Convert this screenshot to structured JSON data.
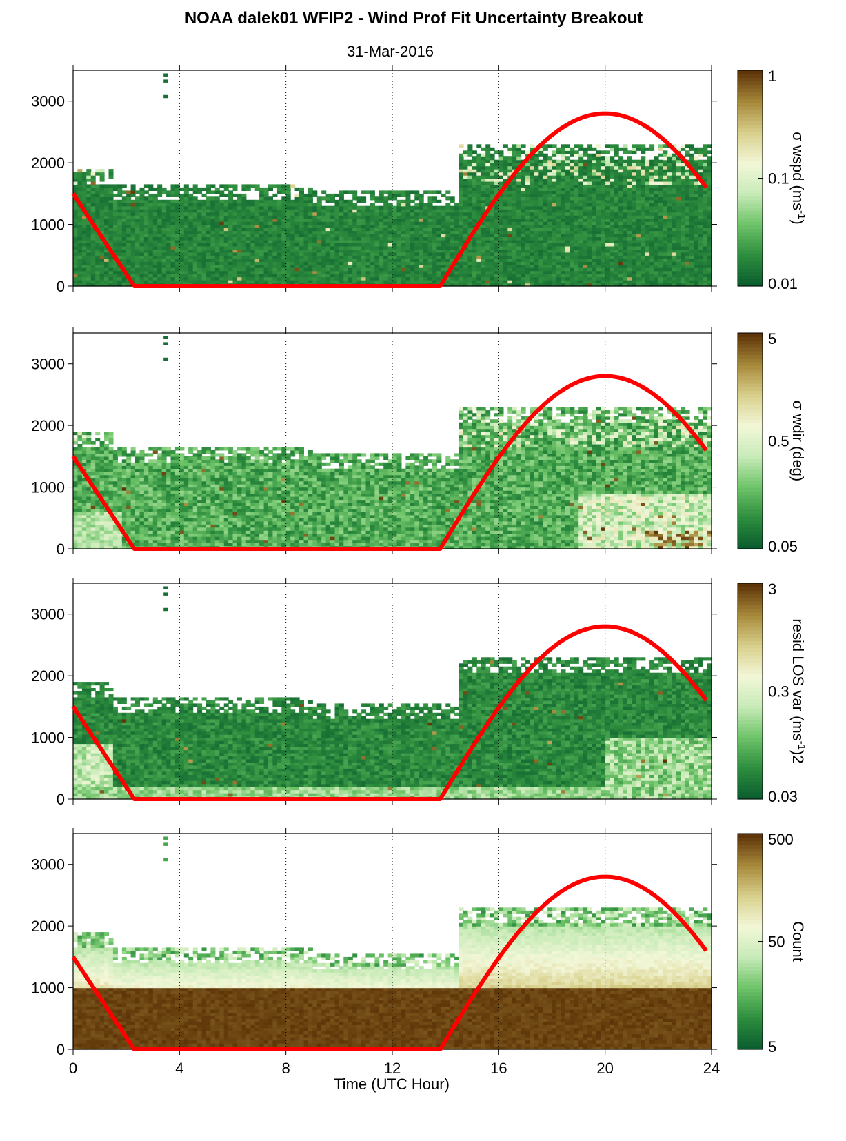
{
  "figure": {
    "title": "NOAA dalek01 WFIP2 - Wind Prof Fit Uncertainty Breakout",
    "subtitle": "31-Mar-2016",
    "xlabel": "Time (UTC Hour)",
    "xticks": [
      "0",
      "4",
      "8",
      "12",
      "16",
      "20",
      "24"
    ],
    "yticks": [
      "0",
      "1000",
      "2000",
      "3000"
    ]
  },
  "colors": {
    "overlay_line": "#ff0000",
    "colormap": [
      "#0b5e2e",
      "#2f8f3f",
      "#6fc46a",
      "#c8ebb8",
      "#f3f7d8",
      "#d8d08c",
      "#a88a3c",
      "#5e3508"
    ]
  },
  "chart_data": [
    {
      "type": "heatmap",
      "xlim": [
        0,
        24
      ],
      "ylim": [
        0,
        3500
      ],
      "x_grid_lines": [
        4,
        8,
        12,
        16,
        20
      ],
      "colorbar": {
        "label": "σ wspd (ms-1)",
        "label_main": "σ wspd (ms",
        "label_sup": "-1",
        "label_end": ")",
        "scale": "log",
        "range": [
          0.01,
          1
        ],
        "ticks": [
          "1",
          "0.1",
          "0.01"
        ]
      },
      "overlay_line": {
        "x": [
          0,
          2.3,
          13.8,
          16,
          18,
          20,
          22,
          24
        ],
        "y": [
          1500,
          0,
          0,
          1420,
          2430,
          2800,
          2430,
          1650
        ]
      },
      "field": "low_uncertainty_mostly"
    },
    {
      "type": "heatmap",
      "xlim": [
        0,
        24
      ],
      "ylim": [
        0,
        3500
      ],
      "x_grid_lines": [
        4,
        8,
        12,
        16,
        20
      ],
      "colorbar": {
        "label": "σ wdir (deg)",
        "label_main": "σ wdir (deg)",
        "label_sup": "",
        "label_end": "",
        "scale": "log",
        "range": [
          0.05,
          5
        ],
        "ticks": [
          "5",
          "0.5",
          "0.05"
        ]
      },
      "overlay_line": {
        "x": [
          0,
          2.3,
          13.8,
          16,
          18,
          20,
          22,
          24
        ],
        "y": [
          1500,
          0,
          0,
          1420,
          2430,
          2800,
          2430,
          1650
        ]
      },
      "field": "mixed_uncertainty"
    },
    {
      "type": "heatmap",
      "xlim": [
        0,
        24
      ],
      "ylim": [
        0,
        3500
      ],
      "x_grid_lines": [
        4,
        8,
        12,
        16,
        20
      ],
      "colorbar": {
        "label": "resid LOS var (ms-1)2",
        "label_main": "resid LOS var (ms",
        "label_sup": "-1",
        "label_end": ")2",
        "scale": "log",
        "range": [
          0.03,
          3
        ],
        "ticks": [
          "3",
          "0.3",
          "0.03"
        ]
      },
      "overlay_line": {
        "x": [
          0,
          2.3,
          13.8,
          16,
          18,
          20,
          22,
          24
        ],
        "y": [
          1500,
          0,
          0,
          1420,
          2430,
          2800,
          2430,
          1650
        ]
      },
      "field": "residual_variance"
    },
    {
      "type": "heatmap",
      "xlim": [
        0,
        24
      ],
      "ylim": [
        0,
        3500
      ],
      "x_grid_lines": [
        4,
        8,
        12,
        16,
        20
      ],
      "colorbar": {
        "label": "Count",
        "label_main": "Count",
        "label_sup": "",
        "label_end": "",
        "scale": "log",
        "range": [
          1,
          500
        ],
        "ticks": [
          "500",
          "50",
          "5"
        ]
      },
      "overlay_line": {
        "x": [
          0,
          2.3,
          13.8,
          16,
          18,
          20,
          22,
          24
        ],
        "y": [
          1500,
          0,
          0,
          1420,
          2430,
          2800,
          2430,
          1650
        ]
      },
      "field": "count"
    }
  ]
}
